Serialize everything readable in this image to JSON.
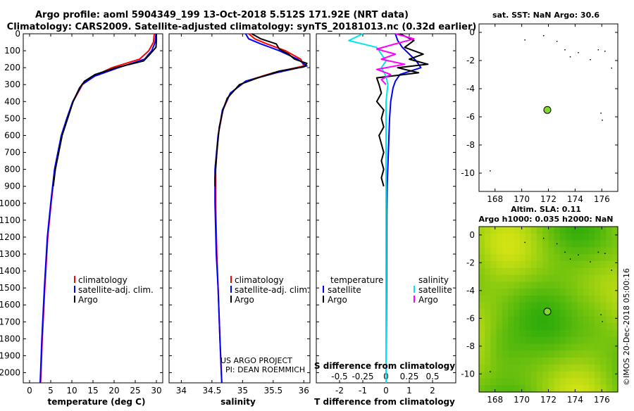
{
  "title": {
    "line1": "Argo profile: aoml 5904349_199 13-Oct-2018 5.512S 171.92E (NRT data)",
    "line2": "Climatology: CARS2009. Satellite-adjusted climatology: synTS_20181013.nc (0.32d earlier)"
  },
  "colors": {
    "climatology": "#ff0000",
    "satellite": "#0000ff",
    "argo": "#000000",
    "sal_satellite": "#00e5ee",
    "sal_argo": "#ff00ff",
    "map_green": "#9ee600",
    "marker": "#7fd832"
  },
  "footer": {
    "project": "US ARGO PROJECT",
    "pi": "PI: DEAN ROEMMICH",
    "imos": "©IMOS 20-Dec-2018 05:00:16"
  },
  "chart_data": [
    {
      "id": "temperature",
      "type": "line",
      "xlabel": "temperature (deg C)",
      "ylabel": "",
      "xlim": [
        -1.5,
        31.5
      ],
      "ylim": [
        2060,
        0
      ],
      "xticks": [
        0,
        5,
        10,
        15,
        20,
        25,
        30
      ],
      "yticks": [
        0,
        100,
        200,
        300,
        400,
        500,
        600,
        700,
        800,
        900,
        1000,
        1100,
        1200,
        1300,
        1400,
        1500,
        1600,
        1700,
        1800,
        1900,
        2000
      ],
      "legend": [
        "climatology",
        "satellite-adj. clim.",
        "Argo"
      ],
      "series": [
        {
          "name": "climatology",
          "color": "#ff0000",
          "depth": [
            0,
            50,
            100,
            150,
            200,
            250,
            300,
            400,
            500,
            600,
            700,
            800,
            1000,
            1200,
            1500,
            1800,
            2000,
            2060
          ],
          "values": [
            29.5,
            29.3,
            28.2,
            26.0,
            19.5,
            15.2,
            12.5,
            10.3,
            8.9,
            7.6,
            6.8,
            6.0,
            5.1,
            4.3,
            3.6,
            3.0,
            2.7,
            2.6
          ]
        },
        {
          "name": "satellite-adj. clim.",
          "color": "#0000ff",
          "depth": [
            0,
            50,
            100,
            150,
            200,
            250,
            300,
            400,
            500,
            600,
            700,
            800,
            1000,
            1200,
            1500,
            1800,
            2000,
            2060
          ],
          "values": [
            29.9,
            29.7,
            28.9,
            27.2,
            21.0,
            15.4,
            12.4,
            10.2,
            8.8,
            7.5,
            6.7,
            5.9,
            5.0,
            4.2,
            3.5,
            2.9,
            2.6,
            2.5
          ]
        },
        {
          "name": "Argo",
          "color": "#000000",
          "depth": [
            0,
            40,
            80,
            120,
            160,
            200,
            240,
            280,
            320,
            400,
            500,
            600,
            700,
            800,
            900
          ],
          "values": [
            30.0,
            30.0,
            29.9,
            28.5,
            27.0,
            20.5,
            15.5,
            13.0,
            11.8,
            10.3,
            9.0,
            7.7,
            6.9,
            6.1,
            5.6
          ]
        }
      ]
    },
    {
      "id": "salinity",
      "type": "line",
      "xlabel": "salinity",
      "xlim": [
        33.8,
        36.1
      ],
      "ylim": [
        2060,
        0
      ],
      "xticks": [
        34,
        34.5,
        35,
        35.5,
        36
      ],
      "xticklabels": [
        "34",
        "34.5",
        "35",
        "35.5",
        "36"
      ],
      "legend": [
        "climatology",
        "satellite-adj. clim.",
        "Argo"
      ],
      "series": [
        {
          "name": "climatology",
          "color": "#ff0000",
          "depth": [
            0,
            30,
            60,
            100,
            150,
            190,
            230,
            280,
            350,
            450,
            600,
            800,
            1000,
            1300,
            1500,
            1800,
            2060
          ],
          "values": [
            35.1,
            35.2,
            35.4,
            35.7,
            35.95,
            36.0,
            35.5,
            35.05,
            34.8,
            34.68,
            34.6,
            34.56,
            34.56,
            34.58,
            34.6,
            34.63,
            34.66
          ]
        },
        {
          "name": "satellite-adj. clim.",
          "color": "#0000ff",
          "depth": [
            0,
            30,
            60,
            100,
            150,
            190,
            230,
            280,
            350,
            450,
            600,
            800,
            1000,
            1300,
            1500,
            1800,
            2060
          ],
          "values": [
            35.05,
            35.1,
            35.3,
            35.6,
            35.9,
            36.05,
            35.55,
            35.05,
            34.8,
            34.67,
            34.6,
            34.55,
            34.55,
            34.57,
            34.6,
            34.63,
            34.66
          ]
        },
        {
          "name": "Argo",
          "color": "#000000",
          "depth": [
            0,
            30,
            60,
            90,
            120,
            150,
            175,
            195,
            220,
            260,
            300,
            380,
            450,
            550,
            700,
            850,
            900
          ],
          "values": [
            35.15,
            35.3,
            35.55,
            35.6,
            35.75,
            35.85,
            36.05,
            36.0,
            35.6,
            35.25,
            34.95,
            34.75,
            34.68,
            34.62,
            34.58,
            34.55,
            34.55
          ]
        }
      ]
    },
    {
      "id": "difference",
      "type": "line",
      "xlabel": "T difference from climatology",
      "xlabel_top": "S difference from climatology",
      "xlim": [
        -3,
        3
      ],
      "s_scale": [
        -0.75,
        0.75
      ],
      "ylim": [
        2060,
        0
      ],
      "xticks": [
        -2,
        -1,
        0,
        1,
        2
      ],
      "s_ticks": [
        -0.5,
        -0.25,
        0,
        0.25,
        0.5
      ],
      "s_ticklabels": [
        "-0.5",
        "-0.25",
        "0",
        "0.25",
        "0.5"
      ],
      "legend": {
        "temperature_header": "temperature",
        "salinity_header": "salinity",
        "left": [
          "satellite",
          "Argo"
        ],
        "right": [
          "satellite",
          "Argo"
        ]
      },
      "series": [
        {
          "name": "T satellite",
          "color": "#0000ff",
          "depth": [
            0,
            40,
            80,
            120,
            160,
            200,
            240,
            280,
            320,
            400,
            500,
            700,
            900,
            1100,
            1500,
            2060
          ],
          "values": [
            0.4,
            0.5,
            0.7,
            1.0,
            1.3,
            1.5,
            0.6,
            0.4,
            0.3,
            0.2,
            0.15,
            0.1,
            0.05,
            0.03,
            0.02,
            0.0
          ]
        },
        {
          "name": "T Argo",
          "color": "#000000",
          "depth": [
            0,
            40,
            80,
            120,
            150,
            180,
            200,
            230,
            260,
            300,
            350,
            400,
            450,
            500,
            550,
            600,
            650,
            700,
            750,
            800,
            850,
            900
          ],
          "values": [
            0.6,
            1.2,
            0.8,
            1.6,
            1.0,
            1.8,
            0.5,
            1.4,
            -0.4,
            -0.3,
            -0.2,
            -0.4,
            -0.1,
            -0.2,
            -0.1,
            -0.3,
            -0.2,
            -0.1,
            -0.2,
            -0.1,
            -0.2,
            -0.1
          ]
        },
        {
          "name": "S satellite",
          "color": "#00e5ee",
          "depth": [
            0,
            40,
            80,
            120,
            160,
            200,
            250,
            300,
            400,
            600,
            900,
            1200,
            2060
          ],
          "values": [
            -0.25,
            -0.4,
            -0.1,
            -0.05,
            0.0,
            -0.05,
            0.0,
            0.02,
            0.0,
            0.0,
            0.0,
            0.0,
            0.0
          ]
        },
        {
          "name": "S Argo",
          "color": "#ff00ff",
          "depth": [
            0,
            30,
            60,
            90,
            120,
            150,
            180,
            210,
            240,
            270,
            300
          ],
          "values": [
            0.1,
            0.3,
            0.1,
            -0.1,
            0.1,
            -0.05,
            0.2,
            -0.1,
            0.05,
            -0.05,
            0.0
          ]
        }
      ]
    },
    {
      "id": "sst_map",
      "type": "scatter",
      "title": "sat. SST: NaN Argo: 30.6",
      "xlim": [
        166.8,
        177.2
      ],
      "ylim": [
        -11.3,
        0.6
      ],
      "xticks": [
        168,
        170,
        172,
        174,
        176
      ],
      "yticks": [
        0,
        -2,
        -4,
        -6,
        -8,
        -10
      ],
      "x": [
        171.92
      ],
      "y": [
        -5.512
      ]
    },
    {
      "id": "sla_map",
      "type": "heatmap",
      "title": "Altim. SLA: 0.11",
      "subtitle": "Argo h1000: 0.035 h2000: NaN",
      "xlim": [
        166.8,
        177.2
      ],
      "ylim": [
        -11.3,
        0.6
      ],
      "xticks": [
        168,
        170,
        172,
        174,
        176
      ],
      "yticks": [
        0,
        -2,
        -4,
        -6,
        -8,
        -10
      ],
      "x": [
        171.92
      ],
      "y": [
        -5.512
      ]
    }
  ]
}
